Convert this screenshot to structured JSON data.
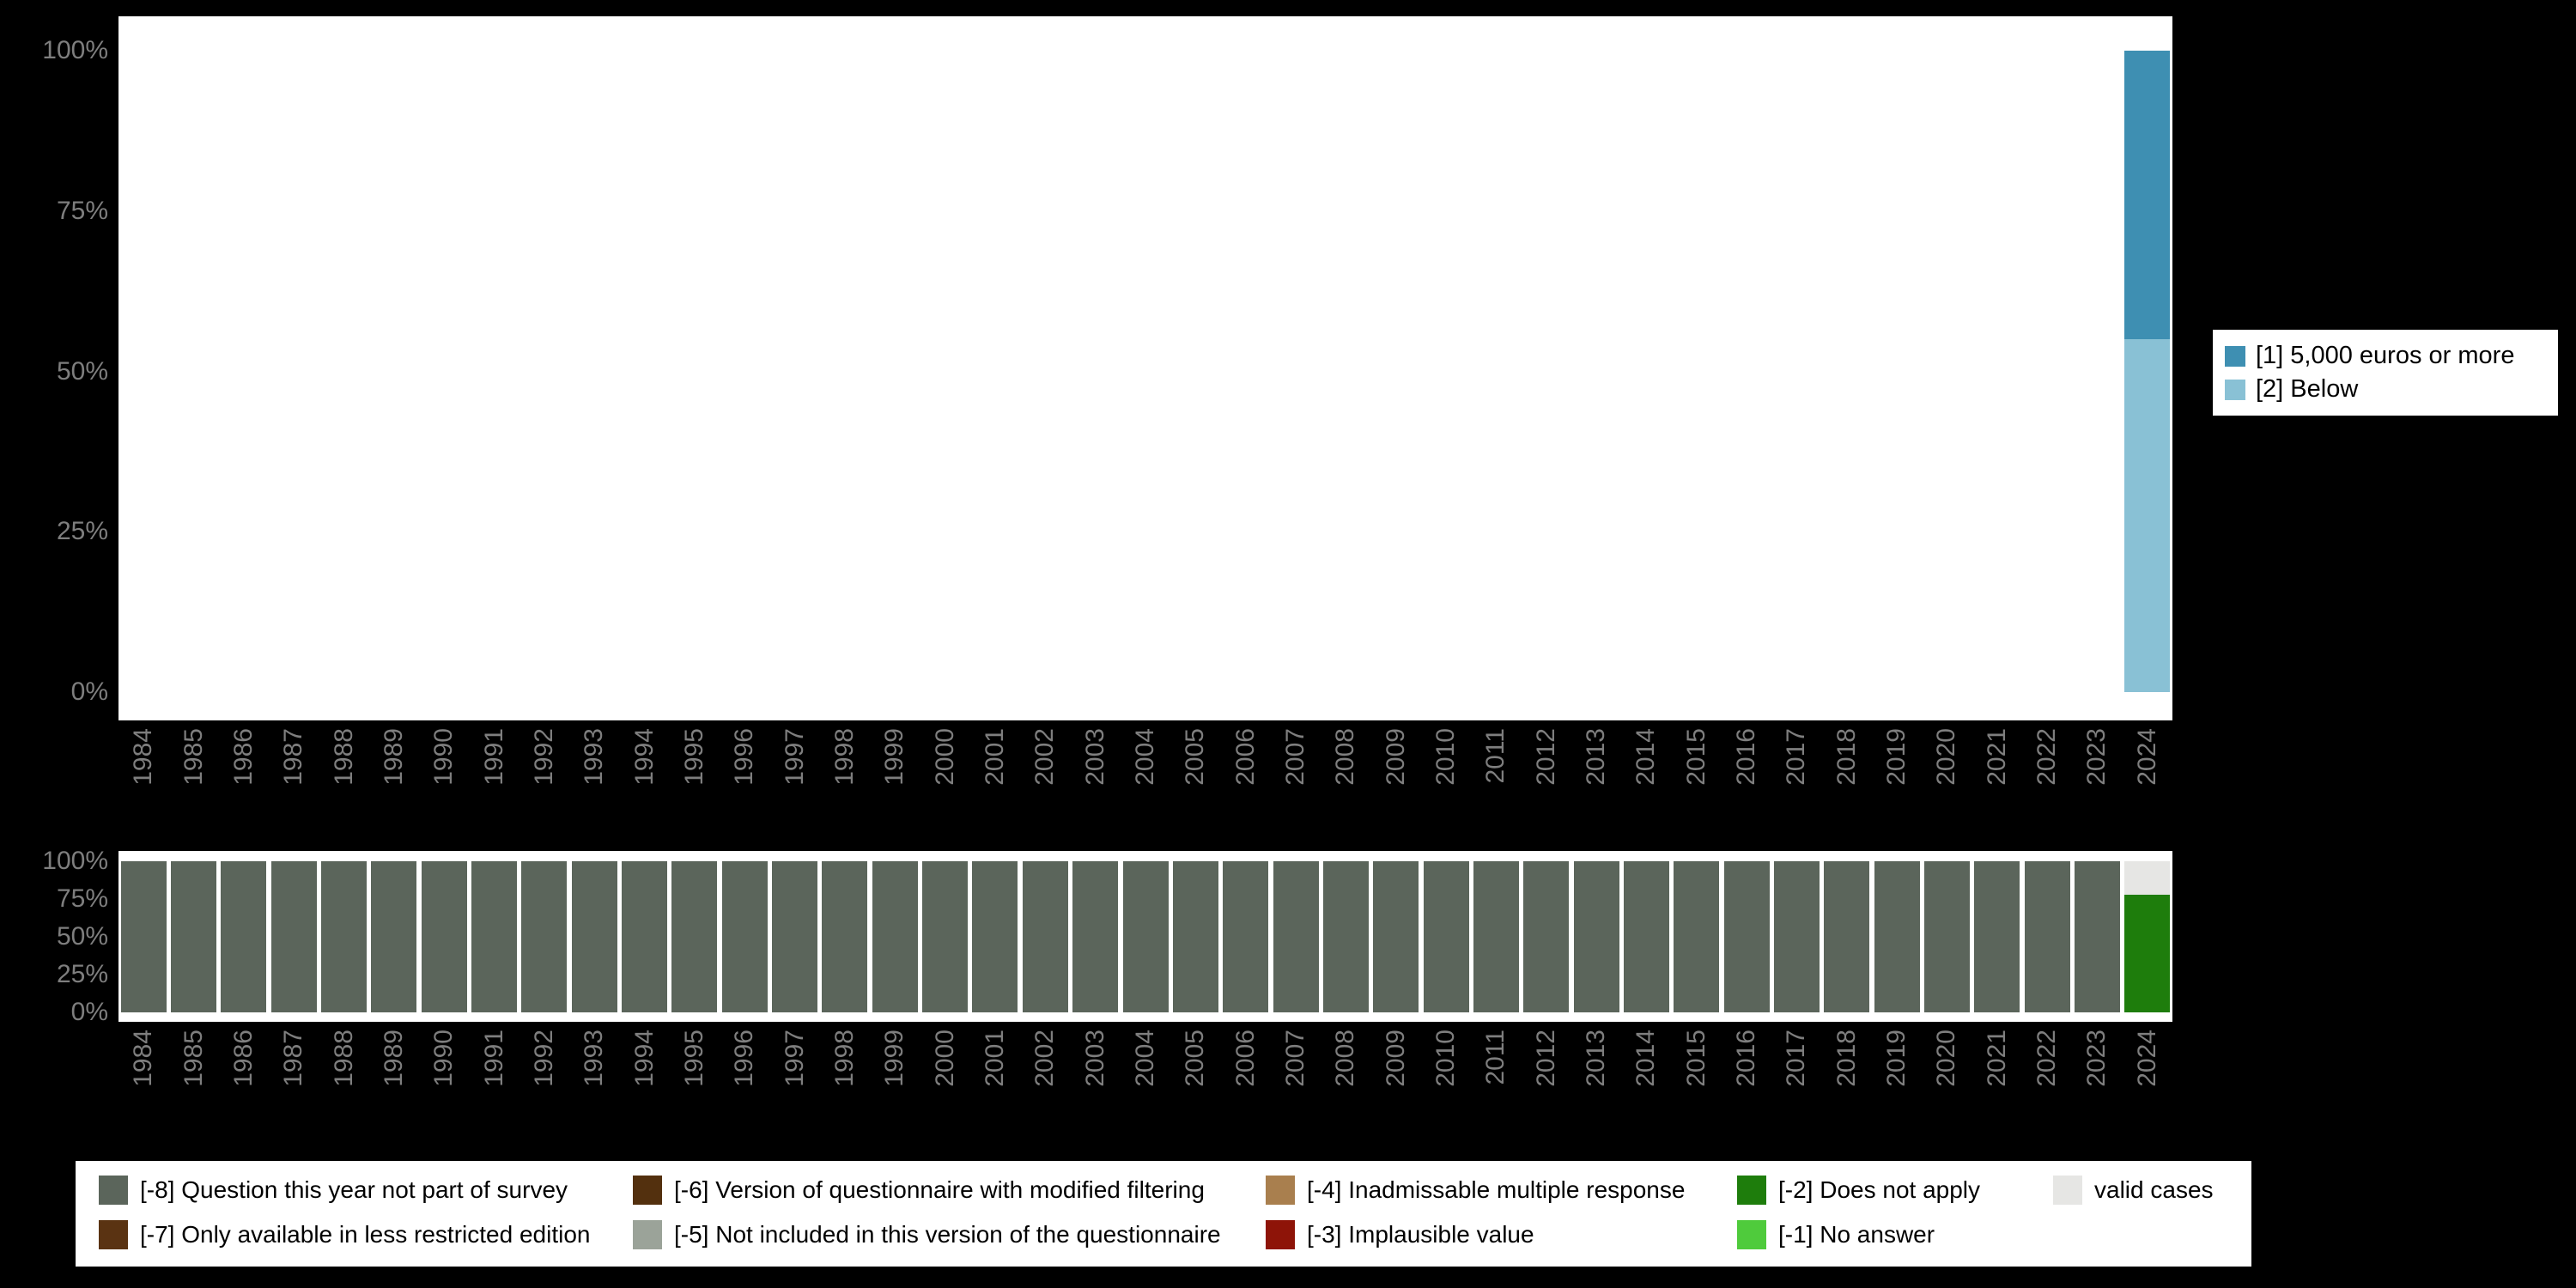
{
  "page": {
    "background": "#000000",
    "plot_background": "#ffffff",
    "axis_text_color": "#7e7e7e"
  },
  "axis": {
    "y_tick_labels": [
      "100%",
      "75%",
      "50%",
      "25%",
      "0%"
    ],
    "y_tick_values": [
      100,
      75,
      50,
      25,
      0
    ]
  },
  "chart_data": [
    {
      "type": "bar",
      "stacked": true,
      "title": "",
      "xlabel": "",
      "ylabel": "",
      "ylim": [
        0,
        100
      ],
      "grid": false,
      "legend_position": "right",
      "categories": [
        "1984",
        "1985",
        "1986",
        "1987",
        "1988",
        "1989",
        "1990",
        "1991",
        "1992",
        "1993",
        "1994",
        "1995",
        "1996",
        "1997",
        "1998",
        "1999",
        "2000",
        "2001",
        "2002",
        "2003",
        "2004",
        "2005",
        "2006",
        "2007",
        "2008",
        "2009",
        "2010",
        "2011",
        "2012",
        "2013",
        "2014",
        "2015",
        "2016",
        "2017",
        "2018",
        "2019",
        "2020",
        "2021",
        "2022",
        "2023",
        "2024"
      ],
      "series": [
        {
          "name": "[1] 5,000 euros or more",
          "color": "#3e8fb2",
          "values": [
            0,
            0,
            0,
            0,
            0,
            0,
            0,
            0,
            0,
            0,
            0,
            0,
            0,
            0,
            0,
            0,
            0,
            0,
            0,
            0,
            0,
            0,
            0,
            0,
            0,
            0,
            0,
            0,
            0,
            0,
            0,
            0,
            0,
            0,
            0,
            0,
            0,
            0,
            0,
            0,
            45
          ]
        },
        {
          "name": "[2] Below",
          "color": "#89c1d5",
          "values": [
            0,
            0,
            0,
            0,
            0,
            0,
            0,
            0,
            0,
            0,
            0,
            0,
            0,
            0,
            0,
            0,
            0,
            0,
            0,
            0,
            0,
            0,
            0,
            0,
            0,
            0,
            0,
            0,
            0,
            0,
            0,
            0,
            0,
            0,
            0,
            0,
            0,
            0,
            0,
            0,
            55
          ]
        }
      ]
    },
    {
      "type": "bar",
      "stacked": true,
      "title": "",
      "xlabel": "",
      "ylabel": "",
      "ylim": [
        0,
        100
      ],
      "grid": false,
      "legend_position": "bottom",
      "categories": [
        "1984",
        "1985",
        "1986",
        "1987",
        "1988",
        "1989",
        "1990",
        "1991",
        "1992",
        "1993",
        "1994",
        "1995",
        "1996",
        "1997",
        "1998",
        "1999",
        "2000",
        "2001",
        "2002",
        "2003",
        "2004",
        "2005",
        "2006",
        "2007",
        "2008",
        "2009",
        "2010",
        "2011",
        "2012",
        "2013",
        "2014",
        "2015",
        "2016",
        "2017",
        "2018",
        "2019",
        "2020",
        "2021",
        "2022",
        "2023",
        "2024"
      ],
      "series": [
        {
          "name": "[-8] Question this year not part of survey",
          "color": "#5b655b",
          "values": [
            100,
            100,
            100,
            100,
            100,
            100,
            100,
            100,
            100,
            100,
            100,
            100,
            100,
            100,
            100,
            100,
            100,
            100,
            100,
            100,
            100,
            100,
            100,
            100,
            100,
            100,
            100,
            100,
            100,
            100,
            100,
            100,
            100,
            100,
            100,
            100,
            100,
            100,
            100,
            100,
            0
          ]
        },
        {
          "name": "valid cases",
          "color": "#e6e6e4",
          "values": [
            0,
            0,
            0,
            0,
            0,
            0,
            0,
            0,
            0,
            0,
            0,
            0,
            0,
            0,
            0,
            0,
            0,
            0,
            0,
            0,
            0,
            0,
            0,
            0,
            0,
            0,
            0,
            0,
            0,
            0,
            0,
            0,
            0,
            0,
            0,
            0,
            0,
            0,
            0,
            0,
            22
          ]
        },
        {
          "name": "[-2] Does not apply",
          "color": "#1e7d0c",
          "values": [
            0,
            0,
            0,
            0,
            0,
            0,
            0,
            0,
            0,
            0,
            0,
            0,
            0,
            0,
            0,
            0,
            0,
            0,
            0,
            0,
            0,
            0,
            0,
            0,
            0,
            0,
            0,
            0,
            0,
            0,
            0,
            0,
            0,
            0,
            0,
            0,
            0,
            0,
            0,
            0,
            78
          ]
        }
      ]
    }
  ],
  "legend_right": {
    "items": [
      {
        "label": "[1] 5,000 euros or more",
        "color": "#3e8fb2"
      },
      {
        "label": "[2] Below",
        "color": "#89c1d5"
      }
    ]
  },
  "legend_bottom": {
    "items": [
      {
        "label": "[-8] Question this year not part of survey",
        "color": "#5b655b"
      },
      {
        "label": "[-6] Version of questionnaire with modified filtering",
        "color": "#53300e"
      },
      {
        "label": "[-4] Inadmissable multiple response",
        "color": "#a97f4e"
      },
      {
        "label": "[-2] Does not apply",
        "color": "#1e7d0c"
      },
      {
        "label": "valid cases",
        "color": "#e6e6e4"
      },
      {
        "label": "[-7] Only available in less restricted edition",
        "color": "#5a3312"
      },
      {
        "label": "[-5] Not included in this version of the questionnaire",
        "color": "#9ba399"
      },
      {
        "label": "[-3] Implausible value",
        "color": "#8e1408"
      },
      {
        "label": "[-1] No answer",
        "color": "#4fcb3c"
      }
    ]
  }
}
